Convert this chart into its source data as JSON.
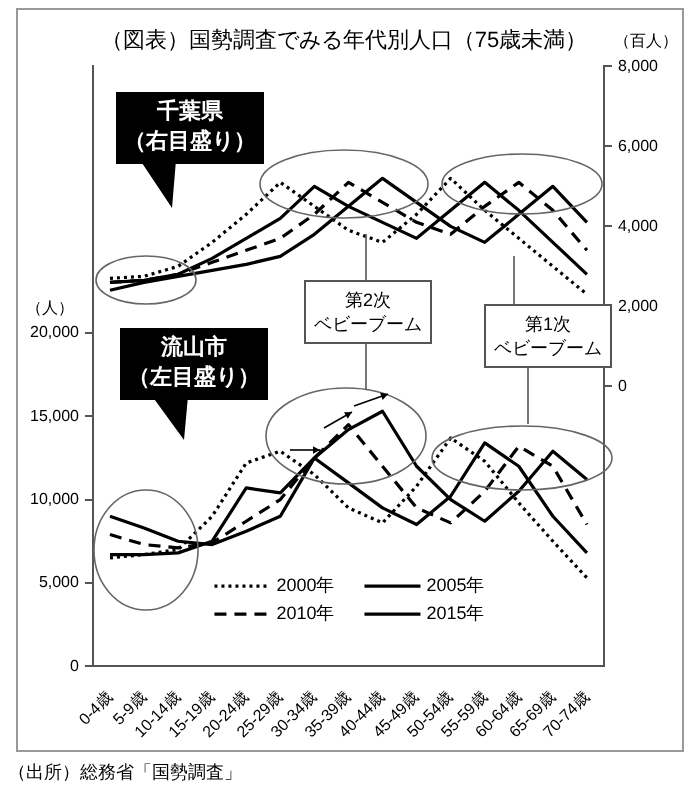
{
  "chart_data": {
    "type": "line",
    "title": "（図表）国勢調査でみる年代別人口（75歳未満）",
    "ylabel": "（人）",
    "y2label": "（百人）",
    "categories": [
      "0-4歳",
      "5-9歳",
      "10-14歳",
      "15-19歳",
      "20-24歳",
      "25-29歳",
      "30-34歳",
      "35-39歳",
      "40-44歳",
      "45-49歳",
      "50-54歳",
      "55-59歳",
      "60-64歳",
      "65-69歳",
      "70-74歳"
    ],
    "series": [
      {
        "name": "2000年",
        "color": "#000000",
        "line_style": "dotted",
        "values": [
          6500,
          6700,
          7000,
          9000,
          12200,
          12900,
          11500,
          9500,
          8600,
          10800,
          13700,
          12300,
          9800,
          7500,
          5300
        ]
      },
      {
        "name": "2005年",
        "color": "#000000",
        "line_style": "solid",
        "values": [
          6700,
          6700,
          6800,
          7500,
          10700,
          10400,
          12500,
          11000,
          9500,
          8500,
          10200,
          13400,
          12000,
          9000,
          6800
        ]
      },
      {
        "name": "2010年",
        "color": "#000000",
        "line_style": "dashed",
        "values": [
          7900,
          7300,
          7100,
          7400,
          8700,
          10000,
          12500,
          14500,
          12000,
          9500,
          8600,
          10500,
          13200,
          12000,
          8500
        ]
      },
      {
        "name": "2015年",
        "color": "#000000",
        "line_style": "solid",
        "values": [
          9000,
          8300,
          7500,
          7300,
          8100,
          9000,
          12500,
          14200,
          15300,
          12000,
          10000,
          8700,
          10500,
          12900,
          11200
        ]
      },
      {
        "axis": "y2",
        "color": "#000000",
        "line_style": "dotted",
        "values": [
          2700,
          2750,
          3000,
          3600,
          4300,
          5100,
          4500,
          3900,
          3600,
          4300,
          5200,
          4400,
          3700,
          3000,
          2300
        ]
      },
      {
        "axis": "y2",
        "color": "#000000",
        "line_style": "solid",
        "values": [
          2600,
          2650,
          2800,
          3200,
          3700,
          4200,
          5000,
          4500,
          4100,
          3700,
          4400,
          5100,
          4400,
          3600,
          2800
        ]
      },
      {
        "axis": "y2",
        "color": "#000000",
        "line_style": "dashed",
        "values": [
          2600,
          2650,
          2800,
          3100,
          3400,
          3700,
          4300,
          5100,
          4600,
          4100,
          3800,
          4500,
          5100,
          4400,
          3400
        ]
      },
      {
        "axis": "y2",
        "color": "#000000",
        "line_style": "solid",
        "values": [
          2400,
          2600,
          2750,
          2900,
          3050,
          3250,
          3800,
          4500,
          5200,
          4600,
          4000,
          3600,
          4300,
          5000,
          4100
        ]
      }
    ],
    "ylim": [
      0,
      36000
    ],
    "yticks": [
      0,
      {
        "value": 5000,
        "label": "5,000"
      },
      {
        "value": 10000,
        "label": "10,000"
      },
      {
        "value": 15000,
        "label": "15,000"
      },
      {
        "value": 20000,
        "label": "20,000"
      }
    ],
    "y2lim": [
      -7000,
      8000
    ],
    "y2ticks": [
      0,
      {
        "value": 2000,
        "label": "2,000"
      },
      {
        "value": 4000,
        "label": "4,000"
      },
      {
        "value": 6000,
        "label": "6,000"
      },
      {
        "value": 8000,
        "label": "8,000"
      }
    ],
    "grid": false,
    "legend": "bottom",
    "marker": "none",
    "annotations": [
      "千葉県（右目盛り）",
      "流山市（左目盛り）",
      "第2次",
      "ベビーブーム",
      "第1次",
      "ベビーブーム",
      "（出所）総務省「国勢調査」"
    ]
  }
}
